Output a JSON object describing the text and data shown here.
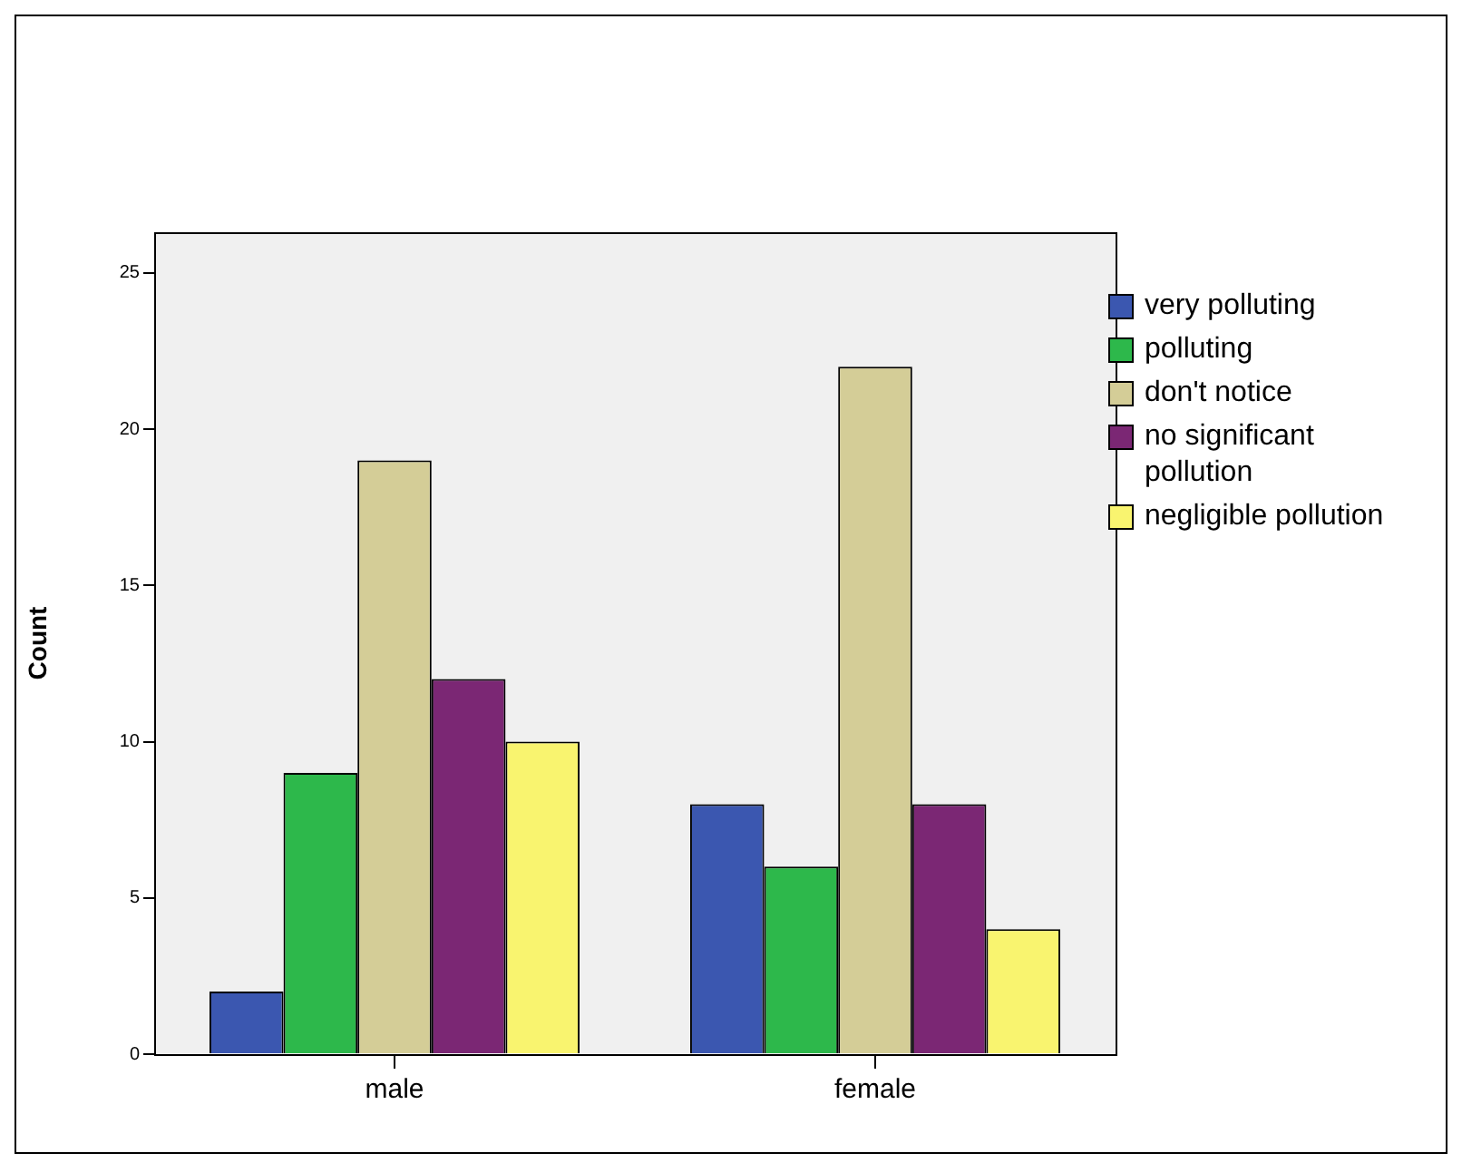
{
  "chart_data": {
    "type": "bar",
    "ylabel": "Count",
    "categories": [
      "male",
      "female"
    ],
    "series": [
      {
        "name": "very polluting",
        "color": "#3b57b0",
        "values": [
          2,
          8
        ]
      },
      {
        "name": "polluting",
        "color": "#2db84b",
        "values": [
          9,
          6
        ]
      },
      {
        "name": "don't notice",
        "color": "#d4cd97",
        "values": [
          19,
          22
        ]
      },
      {
        "name": "no significant pollution",
        "color": "#7b2774",
        "values": [
          12,
          8
        ]
      },
      {
        "name": "negligible pollution",
        "color": "#f9f46f",
        "values": [
          10,
          4
        ]
      }
    ],
    "ylim": [
      0,
      26.3
    ],
    "yticks": [
      0,
      5,
      10,
      15,
      20,
      25
    ],
    "grid": false,
    "legend": "right"
  }
}
